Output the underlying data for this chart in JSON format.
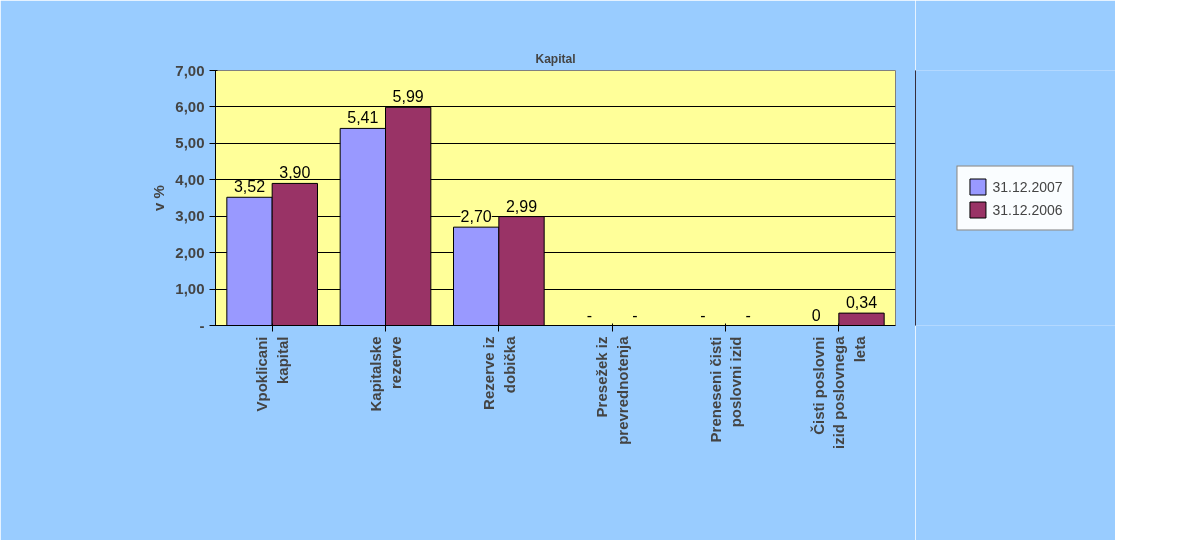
{
  "chart_data": {
    "type": "bar",
    "title": "Kapital",
    "ylabel": "v %",
    "categories": [
      "Vpoklicani\nkapital",
      "Kapitalske\nrezerve",
      "Rezerve iz\ndobička",
      "Presežek iz\nprevrednotenja",
      "Preneseni čisti\nposlovni izid",
      "Čisti poslovni\nizid poslovnega\nleta"
    ],
    "series": [
      {
        "name": "31.12.2007",
        "color": "#9999ff",
        "values": [
          3.52,
          5.41,
          2.7,
          0,
          0,
          0
        ],
        "value_labels": [
          "3,52",
          "5,41",
          "2,70",
          "-",
          "-",
          "0"
        ]
      },
      {
        "name": "31.12.2006",
        "color": "#993366",
        "values": [
          3.9,
          5.99,
          2.99,
          0,
          0,
          0.34
        ],
        "value_labels": [
          "3,90",
          "5,99",
          "2,99",
          "-",
          "-",
          "0,34"
        ]
      }
    ],
    "ylim": [
      0,
      7
    ],
    "yticks": [
      {
        "value": 0,
        "label": "-"
      },
      {
        "value": 1,
        "label": "1,00"
      },
      {
        "value": 2,
        "label": "2,00"
      },
      {
        "value": 3,
        "label": "3,00"
      },
      {
        "value": 4,
        "label": "4,00"
      },
      {
        "value": 5,
        "label": "5,00"
      },
      {
        "value": 6,
        "label": "6,00"
      },
      {
        "value": 7,
        "label": "7,00"
      }
    ],
    "grid": "y",
    "legend": "right"
  }
}
